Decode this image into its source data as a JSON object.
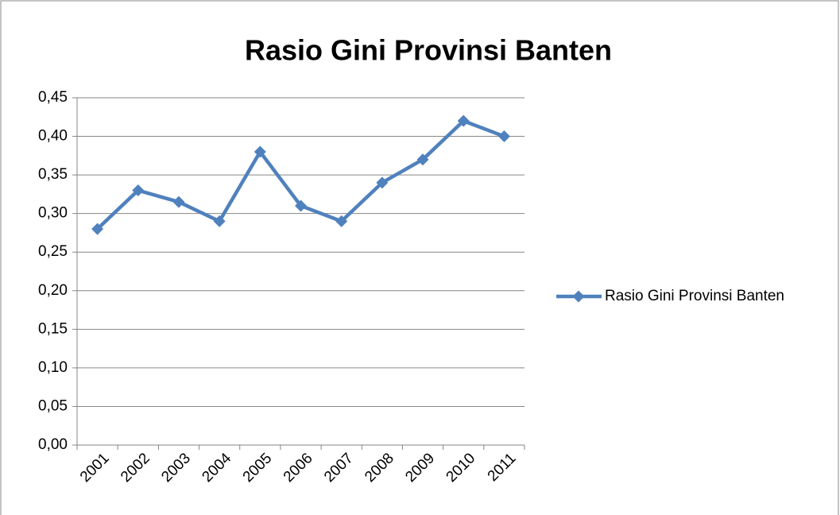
{
  "chart_data": {
    "type": "line",
    "title": "Rasio Gini Provinsi Banten",
    "categories": [
      "2001",
      "2002",
      "2003",
      "2004",
      "2005",
      "2006",
      "2007",
      "2008",
      "2009",
      "2010",
      "2011"
    ],
    "series": [
      {
        "name": "Rasio Gini Provinsi Banten",
        "color": "#4f81bd",
        "values": [
          0.28,
          0.33,
          0.315,
          0.29,
          0.38,
          0.31,
          0.29,
          0.34,
          0.37,
          0.42,
          0.4
        ]
      }
    ],
    "ylim": [
      0,
      0.45
    ],
    "yticks": [
      {
        "value": 0,
        "label": "0,00"
      },
      {
        "value": 0.05,
        "label": "0,05"
      },
      {
        "value": 0.1,
        "label": "0,10"
      },
      {
        "value": 0.15,
        "label": "0,15"
      },
      {
        "value": 0.2,
        "label": "0,20"
      },
      {
        "value": 0.25,
        "label": "0,25"
      },
      {
        "value": 0.3,
        "label": "0,30"
      },
      {
        "value": 0.35,
        "label": "0,35"
      },
      {
        "value": 0.4,
        "label": "0,40"
      },
      {
        "value": 0.45,
        "label": "0,45"
      }
    ],
    "grid": true,
    "legend": "right"
  }
}
